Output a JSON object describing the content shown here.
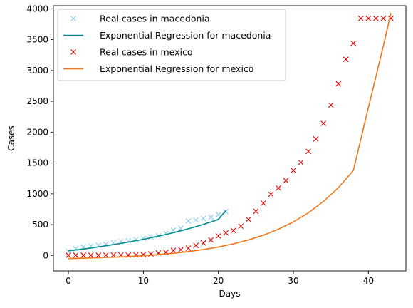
{
  "chart_data": {
    "type": "scatter",
    "xlabel": "Days",
    "ylabel": "Cases",
    "xlim": [
      -2,
      45
    ],
    "ylim": [
      -250,
      4050
    ],
    "xticks": [
      0,
      10,
      20,
      30,
      40
    ],
    "yticks": [
      0,
      500,
      1000,
      1500,
      2000,
      2500,
      3000,
      3500,
      4000
    ],
    "grid": false,
    "legend_position": "upper-left",
    "series": [
      {
        "name": "Real cases in macedonia",
        "kind": "scatter",
        "marker": "x",
        "color": "#87ceeb",
        "x": [
          0,
          1,
          2,
          3,
          4,
          5,
          6,
          7,
          8,
          9,
          10,
          11,
          12,
          13,
          14,
          15,
          16,
          17,
          18,
          19,
          20,
          21
        ],
        "y": [
          65,
          110,
          135,
          150,
          165,
          180,
          205,
          225,
          240,
          260,
          280,
          300,
          320,
          360,
          410,
          440,
          560,
          575,
          600,
          620,
          665,
          710
        ]
      },
      {
        "name": "Exponential Regression for macedonia",
        "kind": "line",
        "color": "#008b8b",
        "x": [
          0,
          1,
          2,
          3,
          4,
          5,
          6,
          7,
          8,
          9,
          10,
          11,
          12,
          13,
          14,
          15,
          16,
          17,
          18,
          19,
          20,
          21
        ],
        "y": [
          75,
          90,
          106,
          122,
          140,
          158,
          177,
          197,
          218,
          240,
          263,
          288,
          314,
          341,
          370,
          401,
          433,
          468,
          504,
          543,
          585,
          730
        ]
      },
      {
        "name": "Real cases in mexico",
        "kind": "scatter",
        "marker": "x",
        "color": "#e00000",
        "x": [
          0,
          1,
          2,
          3,
          4,
          5,
          6,
          7,
          8,
          9,
          10,
          11,
          12,
          13,
          14,
          15,
          16,
          17,
          18,
          19,
          20,
          21,
          22,
          23,
          24,
          25,
          26,
          27,
          28,
          29,
          30,
          31,
          32,
          33,
          34,
          35,
          36,
          37,
          38,
          39,
          40,
          41,
          42,
          43
        ],
        "y": [
          5,
          5,
          5,
          5,
          5,
          6,
          7,
          7,
          8,
          12,
          15,
          26,
          41,
          53,
          82,
          93,
          118,
          164,
          203,
          251,
          316,
          367,
          405,
          475,
          585,
          717,
          848,
          993,
          1094,
          1215,
          1378,
          1510,
          1688,
          1890,
          2143,
          2439,
          2785,
          3181,
          3441,
          3844,
          3844,
          3844,
          3844,
          3844
        ]
      },
      {
        "name": "Exponential Regression for mexico",
        "kind": "line",
        "color": "#f07818",
        "x": [
          0,
          2,
          4,
          6,
          8,
          10,
          12,
          14,
          16,
          18,
          20,
          22,
          24,
          26,
          28,
          30,
          32,
          34,
          36,
          38,
          40,
          42,
          43
        ],
        "y": [
          -50,
          -44,
          -36,
          -27,
          -16,
          -2,
          15,
          37,
          64,
          97,
          138,
          189,
          252,
          330,
          426,
          545,
          692,
          875,
          1100,
          1380,
          2400,
          3400,
          3930
        ]
      }
    ]
  }
}
